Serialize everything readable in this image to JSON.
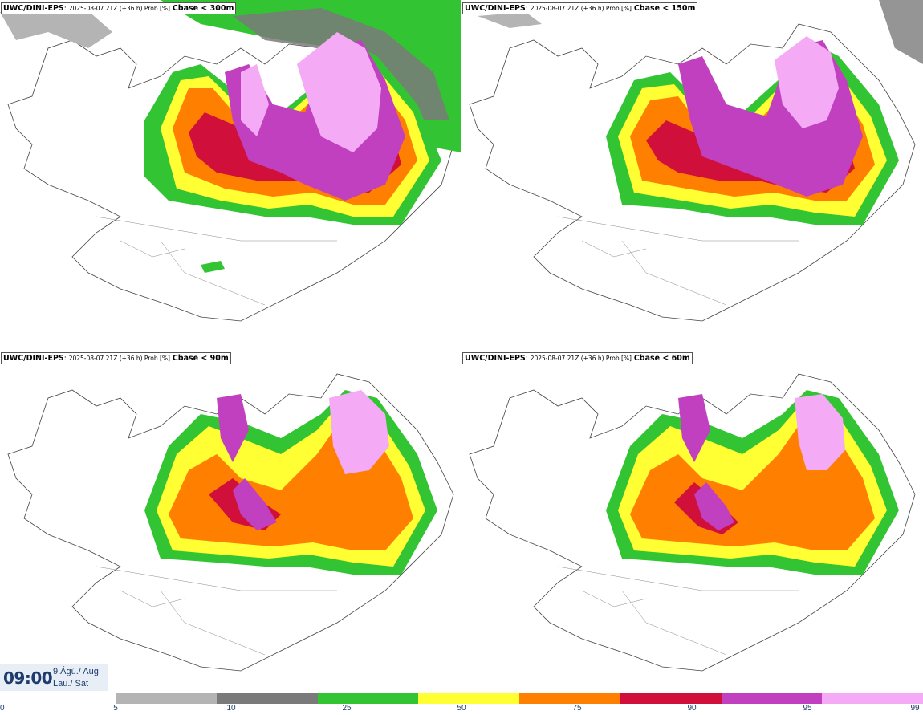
{
  "panels": [
    {
      "model": "UWC/DINI-EPS",
      "meta": "2025-08-07 21Z (+36 h) Prob [%]",
      "threshold": "Cbase < 300m"
    },
    {
      "model": "UWC/DINI-EPS",
      "meta": "2025-08-07 21Z (+36 h) Prob [%]",
      "threshold": "Cbase < 150m"
    },
    {
      "model": "UWC/DINI-EPS",
      "meta": "2025-08-07 21Z (+36 h) Prob [%]",
      "threshold": "Cbase < 90m"
    },
    {
      "model": "UWC/DINI-EPS",
      "meta": "2025-08-07 21Z (+36 h) Prob [%]",
      "threshold": "Cbase < 60m"
    }
  ],
  "valid_time": {
    "time": "09:00",
    "date_is": "9.Ágú./ Aug",
    "day": "Lau./ Sat"
  },
  "colorbar": {
    "ticks": [
      "0",
      "5",
      "10",
      "25",
      "50",
      "75",
      "90",
      "95",
      "99"
    ],
    "colors": [
      "#b4b4b4",
      "#7a7a7a",
      "#33c433",
      "#ffff33",
      "#ff7f00",
      "#d0103a",
      "#c040c0",
      "#f4aaf4"
    ]
  }
}
